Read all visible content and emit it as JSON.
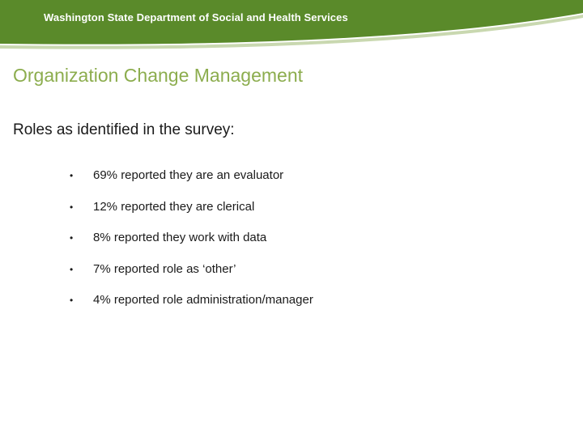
{
  "header": {
    "organization": "Washington State Department of Social and Health Services",
    "band_color": "#5a8a2a",
    "accent_line_color": "#c9d8b0"
  },
  "title": "Organization Change Management",
  "title_color": "#8cad4e",
  "subtitle": "Roles as identified in the survey:",
  "bullets": [
    {
      "marker": "•",
      "text": "69% reported they are an evaluator"
    },
    {
      "marker": "•",
      "text": "12% reported they are clerical"
    },
    {
      "marker": "•",
      "text": "8% reported they work with data"
    },
    {
      "marker": "•",
      "text": "7% reported role as ‘other’"
    },
    {
      "marker": "•",
      "text": "4% reported role administration/manager"
    }
  ]
}
